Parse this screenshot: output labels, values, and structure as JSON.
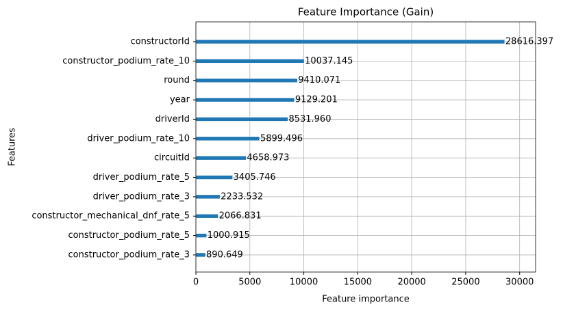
{
  "chart_data": {
    "type": "barh",
    "title": "Feature Importance (Gain)",
    "x_label": "Feature importance",
    "y_label": "Features",
    "categories": [
      "constructorId",
      "constructor_podium_rate_10",
      "round",
      "year",
      "driverId",
      "driver_podium_rate_10",
      "circuitId",
      "driver_podium_rate_5",
      "driver_podium_rate_3",
      "constructor_mechanical_dnf_rate_5",
      "constructor_podium_rate_5",
      "constructor_podium_rate_3"
    ],
    "values": [
      28616.397,
      10037.145,
      9410.071,
      9129.201,
      8531.96,
      5899.496,
      4658.973,
      3405.746,
      2233.532,
      2066.831,
      1000.915,
      890.649
    ],
    "value_labels": [
      "28616.397",
      "10037.145",
      "9410.071",
      "9129.201",
      "8531.960",
      "5899.496",
      "4658.973",
      "3405.746",
      "2233.532",
      "2066.831",
      "1000.915",
      "890.649"
    ],
    "color": "#1f77b4",
    "xlim": [
      0,
      31478
    ],
    "xticks": [
      0,
      5000,
      10000,
      15000,
      20000,
      25000,
      30000
    ],
    "grid": true
  }
}
